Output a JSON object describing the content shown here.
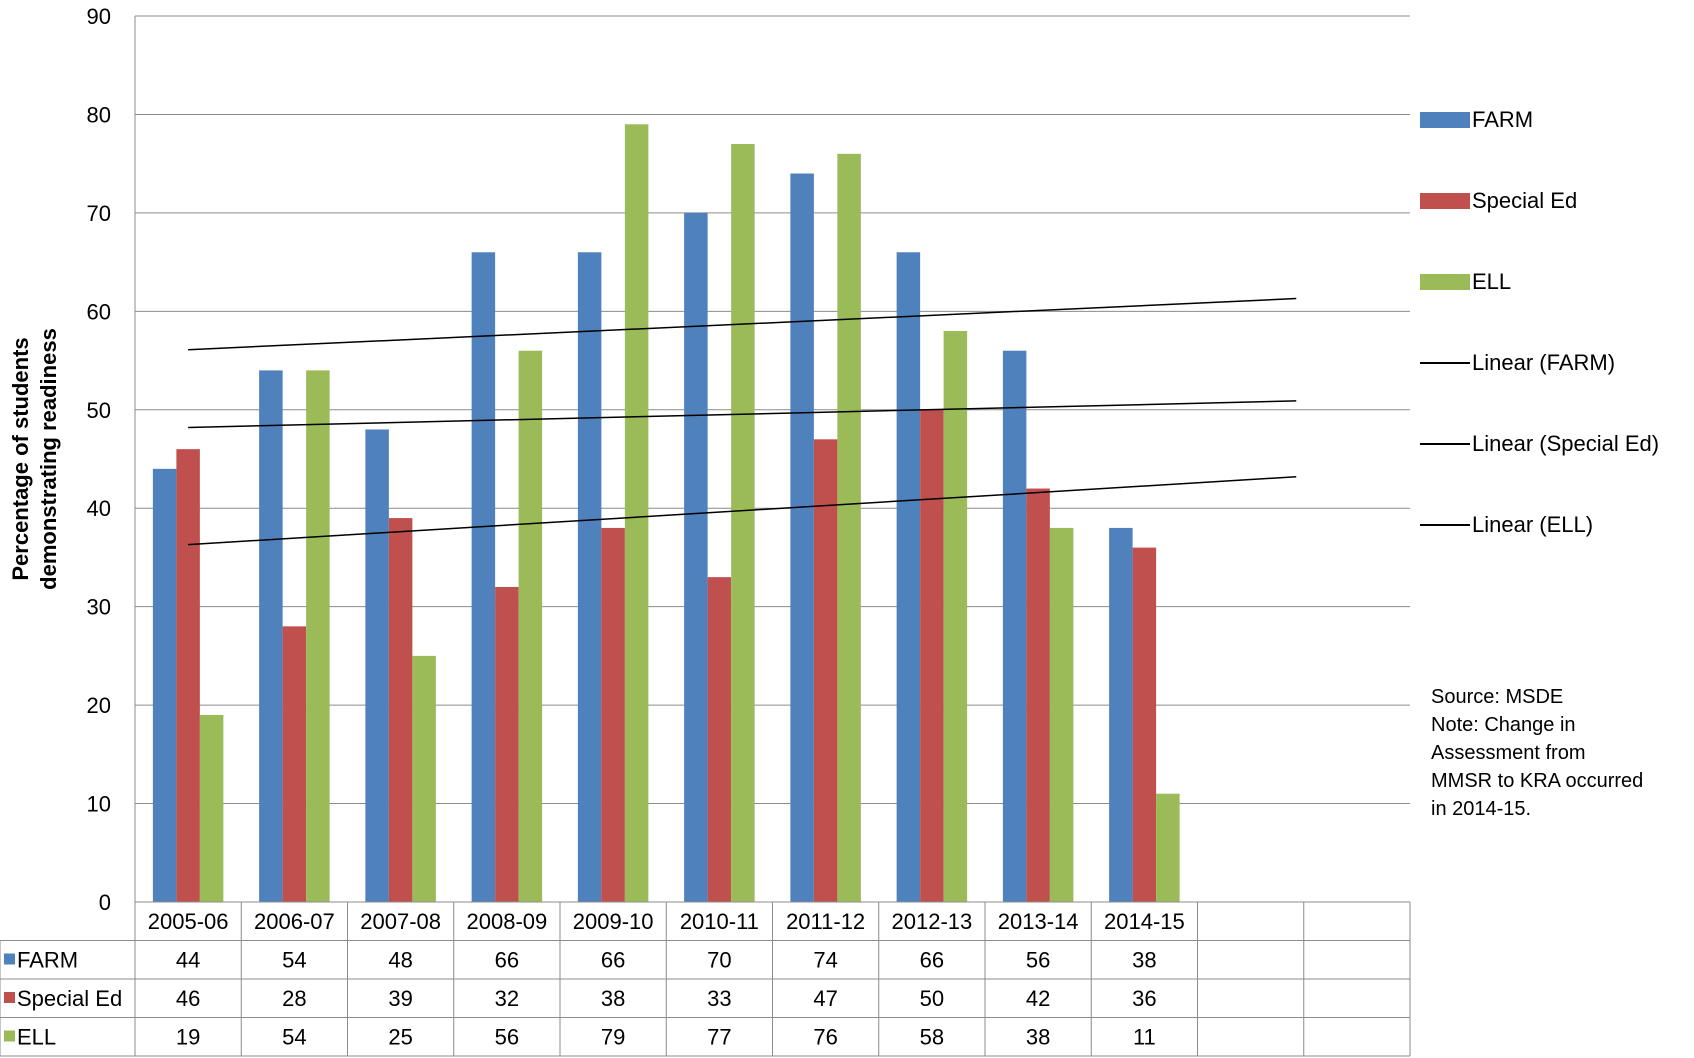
{
  "chart_data": {
    "type": "bar",
    "ylabel": "Percentage of students demonstrating readiness",
    "ylabel_lines": [
      "Percentage of students",
      "demonstrating readiness"
    ],
    "ylim": [
      0,
      90
    ],
    "yticks": [
      0,
      10,
      20,
      30,
      40,
      50,
      60,
      70,
      80,
      90
    ],
    "grid": true,
    "legend_position": "right",
    "categories": [
      "2005-06",
      "2006-07",
      "2007-08",
      "2008-09",
      "2009-10",
      "2010-11",
      "2011-12",
      "2012-13",
      "2013-14",
      "2014-15",
      "",
      ""
    ],
    "series": [
      {
        "name": "FARM",
        "color": "#4F81BD",
        "values": [
          44,
          54,
          48,
          66,
          66,
          70,
          74,
          66,
          56,
          38,
          null,
          null
        ]
      },
      {
        "name": "Special Ed",
        "color": "#C0504D",
        "values": [
          46,
          28,
          39,
          32,
          38,
          33,
          47,
          50,
          42,
          36,
          null,
          null
        ]
      },
      {
        "name": "ELL",
        "color": "#9BBB59",
        "values": [
          19,
          54,
          25,
          56,
          79,
          77,
          76,
          58,
          38,
          11,
          null,
          null
        ]
      }
    ],
    "trendlines": [
      {
        "name": "Linear (FARM)",
        "color": "#000000",
        "start": 56.1,
        "end": 61.3
      },
      {
        "name": "Linear (Special Ed)",
        "color": "#000000",
        "start": 48.2,
        "end": 50.9
      },
      {
        "name": "Linear (ELL)",
        "color": "#000000",
        "start": 36.3,
        "end": 43.2
      }
    ],
    "data_table": true,
    "annotations": [
      "Source: MSDE",
      "Note:  Change in",
      "Assessment from",
      "MMSR to KRA occurred",
      "in 2014-15."
    ]
  }
}
